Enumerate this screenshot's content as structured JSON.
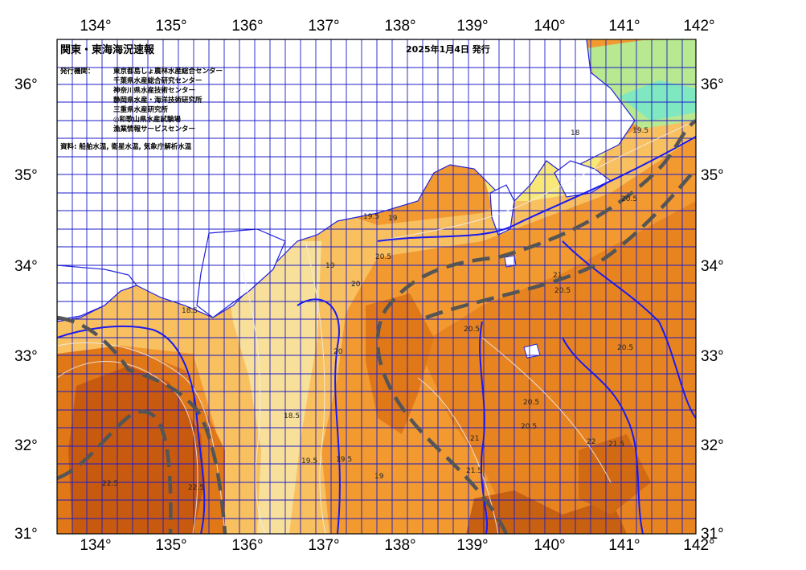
{
  "map": {
    "title": "関東・東海海況速報",
    "issue_date": "2025年1月4日 発行",
    "organizations_label": "発行機関：",
    "organizations": [
      "東京都島しょ農林水産総合センター",
      "千葉県水産総合研究センター",
      "神奈川県水産技術センター",
      "静岡県水産・海洋技術研究所",
      "三重県水産研究所",
      "◎和歌山県水産試験場",
      "漁業情報サービスセンター"
    ],
    "source_note": "資料: 船舶水温, 衛星水温, 気象庁解析水温",
    "longitude_ticks": [
      "134°",
      "135°",
      "136°",
      "137°",
      "138°",
      "139°",
      "140°",
      "141°",
      "142°"
    ],
    "latitude_ticks": [
      "36°",
      "35°",
      "34°",
      "33°",
      "32°",
      "31°"
    ],
    "isotherm_labels": [
      "18",
      "18.5",
      "19",
      "19.5",
      "20",
      "20.5",
      "21",
      "21.5",
      "22",
      "22.5"
    ],
    "colors": {
      "land": "#ffffff",
      "coast_blue": "#2222dd",
      "grid": "#1c1cc8",
      "temp_cold": "#3f9fe0",
      "temp_cyan": "#66e0f0",
      "temp_green": "#88e088",
      "temp_yellow": "#f8e878",
      "temp_light_orange": "#f9c060",
      "temp_orange": "#f29a30",
      "temp_dark_orange": "#e07818",
      "temp_darkest": "#c85a10",
      "kuroshio_axis": "#555555"
    }
  }
}
